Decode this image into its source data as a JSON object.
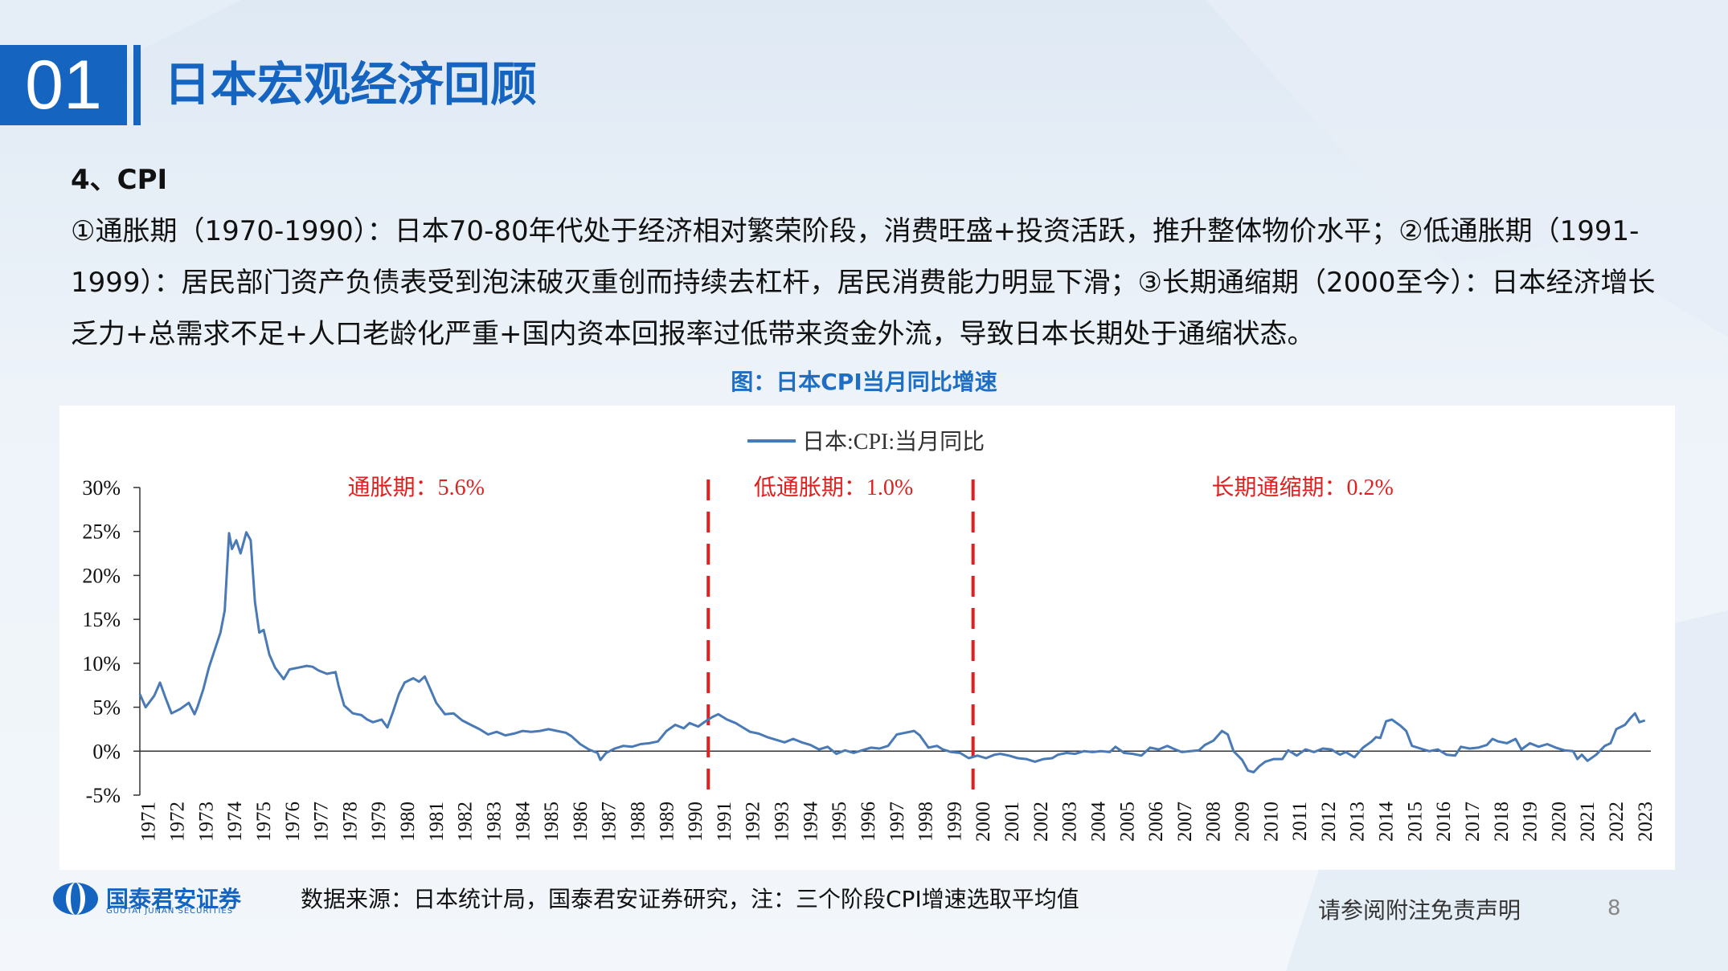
{
  "header": {
    "section_number": "01",
    "section_title": "日本宏观经济回顾"
  },
  "content": {
    "heading": "4、CPI",
    "paragraph": "①通胀期（1970-1990）：日本70-80年代处于经济相对繁荣阶段，消费旺盛+投资活跃，推升整体物价水平；②低通胀期（1991-1999）：居民部门资产负债表受到泡沫破灭重创而持续去杠杆，居民消费能力明显下滑；③长期通缩期（2000至今）：日本经济增长乏力+总需求不足+人口老龄化严重+国内资本回报率过低带来资金外流，导致日本长期处于通缩状态。",
    "figure_caption": "图：日本CPI当月同比增速"
  },
  "chart_data": {
    "type": "line",
    "title": "",
    "xlabel": "",
    "ylabel": "",
    "ylim": [
      -5,
      30
    ],
    "yticks": [
      "-5%",
      "0%",
      "5%",
      "10%",
      "15%",
      "20%",
      "25%",
      "30%"
    ],
    "xticks": [
      "1971",
      "1972",
      "1973",
      "1974",
      "1975",
      "1976",
      "1977",
      "1978",
      "1979",
      "1980",
      "1981",
      "1982",
      "1983",
      "1984",
      "1985",
      "1986",
      "1987",
      "1988",
      "1989",
      "1990",
      "1991",
      "1992",
      "1993",
      "1994",
      "1995",
      "1996",
      "1997",
      "1998",
      "1999",
      "2000",
      "2001",
      "2002",
      "2003",
      "2004",
      "2005",
      "2006",
      "2007",
      "2008",
      "2009",
      "2010",
      "2011",
      "2012",
      "2013",
      "2014",
      "2015",
      "2016",
      "2017",
      "2018",
      "2019",
      "2020",
      "2021",
      "2022",
      "2023"
    ],
    "legend": "top-center",
    "grid": false,
    "series": [
      {
        "name": "日本:CPI:当月同比",
        "color": "#4a7ab5",
        "points": [
          [
            1971.0,
            6.5
          ],
          [
            1971.2,
            5.0
          ],
          [
            1971.5,
            6.3
          ],
          [
            1971.7,
            7.8
          ],
          [
            1971.9,
            6.0
          ],
          [
            1972.1,
            4.3
          ],
          [
            1972.4,
            4.8
          ],
          [
            1972.7,
            5.5
          ],
          [
            1972.9,
            4.2
          ],
          [
            1973.0,
            5.0
          ],
          [
            1973.2,
            7.0
          ],
          [
            1973.4,
            9.5
          ],
          [
            1973.6,
            11.5
          ],
          [
            1973.8,
            13.5
          ],
          [
            1973.95,
            16.0
          ],
          [
            1974.1,
            24.8
          ],
          [
            1974.2,
            23.0
          ],
          [
            1974.35,
            24.0
          ],
          [
            1974.5,
            22.5
          ],
          [
            1974.7,
            24.9
          ],
          [
            1974.85,
            24.0
          ],
          [
            1975.0,
            17.0
          ],
          [
            1975.15,
            13.5
          ],
          [
            1975.3,
            13.8
          ],
          [
            1975.5,
            11.0
          ],
          [
            1975.7,
            9.5
          ],
          [
            1976.0,
            8.2
          ],
          [
            1976.2,
            9.3
          ],
          [
            1976.5,
            9.5
          ],
          [
            1976.8,
            9.7
          ],
          [
            1977.0,
            9.6
          ],
          [
            1977.2,
            9.2
          ],
          [
            1977.5,
            8.8
          ],
          [
            1977.8,
            9.0
          ],
          [
            1977.9,
            7.5
          ],
          [
            1978.1,
            5.2
          ],
          [
            1978.4,
            4.3
          ],
          [
            1978.7,
            4.1
          ],
          [
            1978.9,
            3.6
          ],
          [
            1979.1,
            3.3
          ],
          [
            1979.4,
            3.6
          ],
          [
            1979.6,
            2.7
          ],
          [
            1979.8,
            4.5
          ],
          [
            1980.0,
            6.5
          ],
          [
            1980.2,
            7.8
          ],
          [
            1980.5,
            8.3
          ],
          [
            1980.7,
            7.9
          ],
          [
            1980.9,
            8.5
          ],
          [
            1981.1,
            7.0
          ],
          [
            1981.3,
            5.5
          ],
          [
            1981.6,
            4.2
          ],
          [
            1981.9,
            4.3
          ],
          [
            1982.2,
            3.5
          ],
          [
            1982.5,
            3.0
          ],
          [
            1982.8,
            2.5
          ],
          [
            1983.1,
            1.9
          ],
          [
            1983.4,
            2.2
          ],
          [
            1983.7,
            1.8
          ],
          [
            1984.0,
            2.0
          ],
          [
            1984.3,
            2.3
          ],
          [
            1984.6,
            2.2
          ],
          [
            1984.9,
            2.3
          ],
          [
            1985.2,
            2.5
          ],
          [
            1985.5,
            2.3
          ],
          [
            1985.8,
            2.1
          ],
          [
            1986.0,
            1.7
          ],
          [
            1986.3,
            0.8
          ],
          [
            1986.6,
            0.2
          ],
          [
            1986.9,
            -0.2
          ],
          [
            1987.0,
            -1.0
          ],
          [
            1987.2,
            -0.2
          ],
          [
            1987.5,
            0.3
          ],
          [
            1987.8,
            0.6
          ],
          [
            1988.1,
            0.5
          ],
          [
            1988.4,
            0.8
          ],
          [
            1988.7,
            0.9
          ],
          [
            1989.0,
            1.1
          ],
          [
            1989.3,
            2.3
          ],
          [
            1989.6,
            3.0
          ],
          [
            1989.9,
            2.6
          ],
          [
            1990.1,
            3.2
          ],
          [
            1990.4,
            2.8
          ],
          [
            1990.7,
            3.5
          ],
          [
            1990.9,
            3.9
          ],
          [
            1991.1,
            4.2
          ],
          [
            1991.4,
            3.6
          ],
          [
            1991.7,
            3.2
          ],
          [
            1991.9,
            2.8
          ],
          [
            1992.2,
            2.2
          ],
          [
            1992.5,
            2.0
          ],
          [
            1992.8,
            1.6
          ],
          [
            1993.1,
            1.3
          ],
          [
            1993.4,
            1.0
          ],
          [
            1993.7,
            1.4
          ],
          [
            1994.0,
            1.0
          ],
          [
            1994.3,
            0.7
          ],
          [
            1994.6,
            0.2
          ],
          [
            1994.9,
            0.5
          ],
          [
            1995.2,
            -0.3
          ],
          [
            1995.5,
            0.1
          ],
          [
            1995.8,
            -0.2
          ],
          [
            1996.1,
            0.1
          ],
          [
            1996.4,
            0.4
          ],
          [
            1996.7,
            0.3
          ],
          [
            1997.0,
            0.6
          ],
          [
            1997.3,
            1.9
          ],
          [
            1997.6,
            2.1
          ],
          [
            1997.9,
            2.3
          ],
          [
            1998.1,
            1.8
          ],
          [
            1998.4,
            0.4
          ],
          [
            1998.7,
            0.6
          ],
          [
            1998.9,
            0.2
          ],
          [
            1999.2,
            -0.1
          ],
          [
            1999.5,
            -0.2
          ],
          [
            1999.8,
            -0.8
          ],
          [
            2000.1,
            -0.5
          ],
          [
            2000.4,
            -0.8
          ],
          [
            2000.7,
            -0.4
          ],
          [
            2000.9,
            -0.3
          ],
          [
            2001.2,
            -0.5
          ],
          [
            2001.5,
            -0.8
          ],
          [
            2001.8,
            -0.9
          ],
          [
            2002.1,
            -1.2
          ],
          [
            2002.4,
            -0.9
          ],
          [
            2002.7,
            -0.8
          ],
          [
            2002.9,
            -0.4
          ],
          [
            2003.2,
            -0.2
          ],
          [
            2003.5,
            -0.3
          ],
          [
            2003.8,
            0.0
          ],
          [
            2004.1,
            -0.1
          ],
          [
            2004.4,
            0.0
          ],
          [
            2004.7,
            -0.1
          ],
          [
            2004.9,
            0.5
          ],
          [
            2005.2,
            -0.2
          ],
          [
            2005.5,
            -0.3
          ],
          [
            2005.8,
            -0.5
          ],
          [
            2006.1,
            0.4
          ],
          [
            2006.4,
            0.2
          ],
          [
            2006.7,
            0.6
          ],
          [
            2006.9,
            0.3
          ],
          [
            2007.2,
            -0.1
          ],
          [
            2007.5,
            0.0
          ],
          [
            2007.8,
            0.1
          ],
          [
            2008.0,
            0.7
          ],
          [
            2008.3,
            1.2
          ],
          [
            2008.6,
            2.3
          ],
          [
            2008.8,
            1.9
          ],
          [
            2009.0,
            0.0
          ],
          [
            2009.3,
            -1.0
          ],
          [
            2009.5,
            -2.2
          ],
          [
            2009.7,
            -2.4
          ],
          [
            2009.9,
            -1.7
          ],
          [
            2010.1,
            -1.2
          ],
          [
            2010.4,
            -0.9
          ],
          [
            2010.7,
            -0.9
          ],
          [
            2010.9,
            0.1
          ],
          [
            2011.2,
            -0.5
          ],
          [
            2011.5,
            0.2
          ],
          [
            2011.8,
            -0.1
          ],
          [
            2012.1,
            0.3
          ],
          [
            2012.4,
            0.2
          ],
          [
            2012.7,
            -0.4
          ],
          [
            2012.9,
            -0.1
          ],
          [
            2013.2,
            -0.7
          ],
          [
            2013.5,
            0.4
          ],
          [
            2013.8,
            1.1
          ],
          [
            2013.95,
            1.6
          ],
          [
            2014.1,
            1.5
          ],
          [
            2014.3,
            3.4
          ],
          [
            2014.5,
            3.6
          ],
          [
            2014.8,
            2.9
          ],
          [
            2015.0,
            2.3
          ],
          [
            2015.2,
            0.6
          ],
          [
            2015.5,
            0.3
          ],
          [
            2015.8,
            0.0
          ],
          [
            2016.1,
            0.2
          ],
          [
            2016.4,
            -0.4
          ],
          [
            2016.7,
            -0.5
          ],
          [
            2016.9,
            0.5
          ],
          [
            2017.2,
            0.3
          ],
          [
            2017.5,
            0.4
          ],
          [
            2017.8,
            0.7
          ],
          [
            2018.0,
            1.4
          ],
          [
            2018.2,
            1.1
          ],
          [
            2018.5,
            0.9
          ],
          [
            2018.8,
            1.4
          ],
          [
            2019.0,
            0.2
          ],
          [
            2019.3,
            0.9
          ],
          [
            2019.6,
            0.5
          ],
          [
            2019.9,
            0.8
          ],
          [
            2020.2,
            0.4
          ],
          [
            2020.5,
            0.1
          ],
          [
            2020.8,
            0.0
          ],
          [
            2020.95,
            -0.9
          ],
          [
            2021.1,
            -0.4
          ],
          [
            2021.3,
            -1.1
          ],
          [
            2021.6,
            -0.4
          ],
          [
            2021.9,
            0.6
          ],
          [
            2022.1,
            0.9
          ],
          [
            2022.3,
            2.5
          ],
          [
            2022.6,
            3.0
          ],
          [
            2022.8,
            3.8
          ],
          [
            2022.95,
            4.3
          ],
          [
            2023.1,
            3.3
          ],
          [
            2023.3,
            3.5
          ]
        ]
      }
    ],
    "period_dividers": [
      1990.75,
      1999.95
    ],
    "annotations": [
      {
        "text": "通胀期：5.6%",
        "x": 1980.6
      },
      {
        "text": "低通胀期：1.0%",
        "x": 1995.1
      },
      {
        "text": "长期通缩期：0.2%",
        "x": 2011.4
      }
    ],
    "annotation_color": "#e02020"
  },
  "footer": {
    "logo_name": "国泰君安证券",
    "logo_english": "GUOTAI JUNAN SECURITIES",
    "source": "数据来源：日本统计局，国泰君安证券研究，注：三个阶段CPI增速选取平均值",
    "disclaimer": "请参阅附注免责声明",
    "page_number": "8"
  }
}
